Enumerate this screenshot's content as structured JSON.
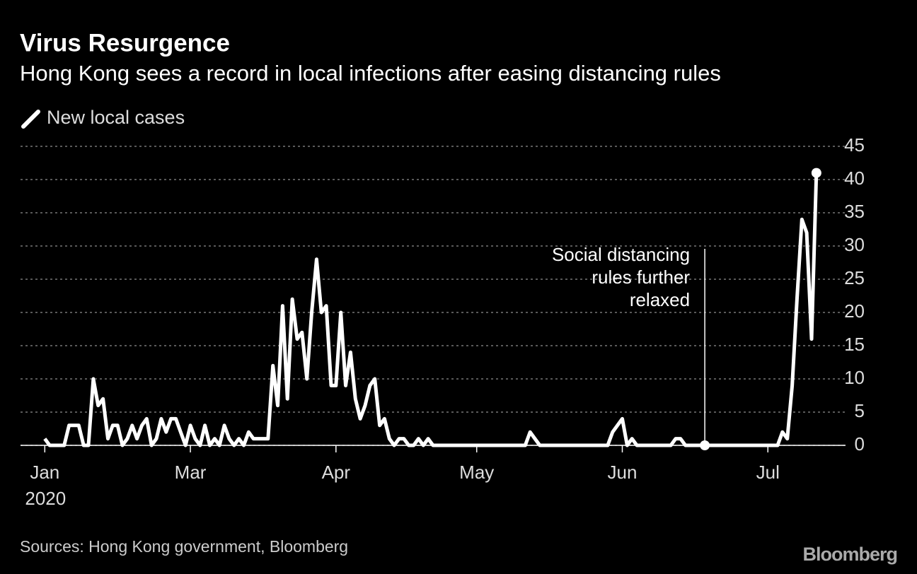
{
  "chart_data": {
    "type": "line",
    "title": "Virus Resurgence",
    "subtitle": "Hong Kong sees a record in local infections after easing distancing rules",
    "series": [
      {
        "name": "New local cases",
        "color": "#ffffff",
        "values": [
          1,
          0,
          0,
          0,
          0,
          3,
          3,
          3,
          0,
          0,
          10,
          6,
          7,
          1,
          3,
          3,
          0,
          1,
          3,
          1,
          3,
          4,
          0,
          1,
          4,
          2,
          4,
          4,
          2,
          0,
          3,
          1,
          0,
          3,
          0,
          1,
          0,
          3,
          1,
          0,
          1,
          0,
          2,
          1,
          1,
          1,
          1,
          12,
          6,
          21,
          7,
          22,
          16,
          17,
          10,
          20,
          28,
          20,
          21,
          9,
          9,
          20,
          9,
          14,
          7,
          4,
          6,
          9,
          10,
          3,
          4,
          1,
          0,
          1,
          1,
          0,
          0,
          1,
          0,
          1,
          0,
          0,
          0,
          0,
          0,
          0,
          0,
          0,
          0,
          0,
          0,
          0,
          0,
          0,
          0,
          0,
          0,
          0,
          0,
          0,
          2,
          1,
          0,
          0,
          0,
          0,
          0,
          0,
          0,
          0,
          0,
          0,
          0,
          0,
          0,
          0,
          0,
          2,
          3,
          4,
          0,
          1,
          0,
          0,
          0,
          0,
          0,
          0,
          0,
          0,
          1,
          1,
          0,
          0,
          0,
          0,
          0,
          0,
          0,
          0,
          0,
          0,
          0,
          0,
          0,
          0,
          0,
          0,
          0,
          0,
          0,
          0,
          2,
          1,
          9,
          22,
          34,
          32,
          16,
          41
        ]
      }
    ],
    "xlim": [
      -5,
      165
    ],
    "xticks": [
      {
        "value": 0,
        "label": "Jan"
      },
      {
        "value": 30,
        "label": "Mar"
      },
      {
        "value": 60,
        "label": "Apr"
      },
      {
        "value": 89,
        "label": "May"
      },
      {
        "value": 119,
        "label": "Jun"
      },
      {
        "value": 149,
        "label": "Jul"
      }
    ],
    "xtick_sublabel": "2020",
    "ylim": [
      0,
      45
    ],
    "yticks": [
      0,
      5,
      10,
      15,
      20,
      25,
      30,
      35,
      40,
      45
    ],
    "grid": true,
    "annotation": {
      "x": 136,
      "text": [
        "Social distancing",
        "rules further",
        "relaxed"
      ]
    },
    "source": "Sources: Hong Kong government, Bloomberg",
    "brand": "Bloomberg"
  }
}
